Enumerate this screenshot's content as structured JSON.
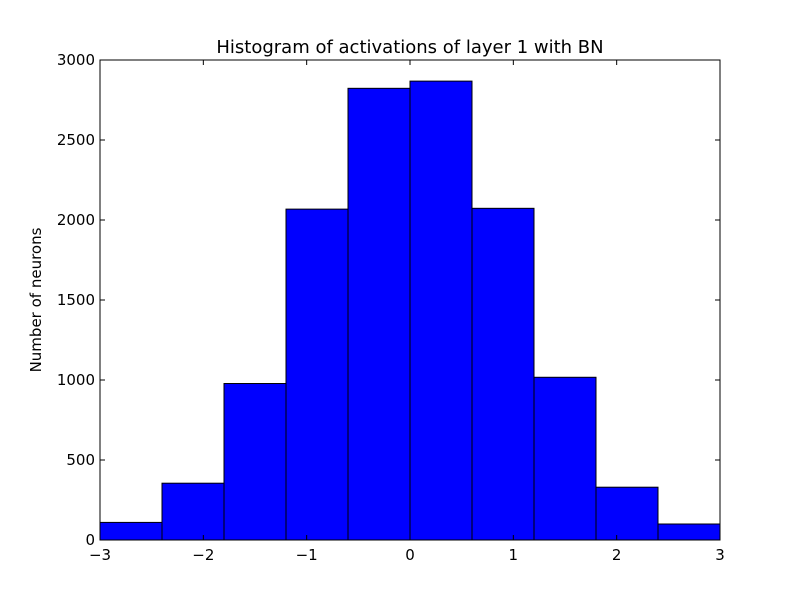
{
  "chart_data": {
    "type": "bar",
    "title": "Histogram of activations of layer 1  with BN",
    "xlabel": "",
    "ylabel": "Number of neurons",
    "xlim": [
      -3,
      3
    ],
    "ylim": [
      0,
      3000
    ],
    "bin_edges": [
      -3,
      -2.4,
      -1.8,
      -1.2,
      -0.6,
      0,
      0.6,
      1.2,
      1.8,
      2.4,
      3
    ],
    "values": [
      110,
      355,
      978,
      2068,
      2823,
      2868,
      2073,
      1017,
      330,
      100
    ],
    "x_ticks": [
      -3,
      -2,
      -1,
      0,
      1,
      2,
      3
    ],
    "x_tick_labels": [
      "−3",
      "−2",
      "−1",
      "0",
      "1",
      "2",
      "3"
    ],
    "y_ticks": [
      0,
      500,
      1000,
      1500,
      2000,
      2500,
      3000
    ],
    "y_tick_labels": [
      "0",
      "500",
      "1000",
      "1500",
      "2000",
      "2500",
      "3000"
    ],
    "bar_color": "#0000ff",
    "edge_color": "#000000",
    "grid": false
  }
}
